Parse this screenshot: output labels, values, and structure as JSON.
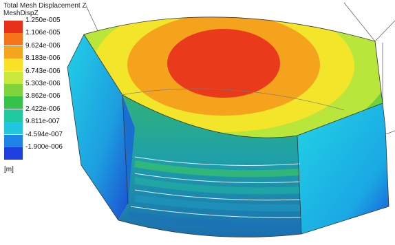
{
  "legend": {
    "title": "Total Mesh Displacement Z",
    "subtitle": "MeshDispZ",
    "unit": "[m]",
    "entries": [
      {
        "label": "1.250e-005",
        "color": "#e8301a"
      },
      {
        "label": "1.106e-005",
        "color": "#f5741a"
      },
      {
        "label": "9.624e-006",
        "color": "#f5a51e"
      },
      {
        "label": "8.183e-006",
        "color": "#fae128"
      },
      {
        "label": "6.743e-006",
        "color": "#c9e83a"
      },
      {
        "label": "5.303e-006",
        "color": "#7fd43c"
      },
      {
        "label": "3.862e-006",
        "color": "#34c24a"
      },
      {
        "label": "2.422e-006",
        "color": "#21c9a0"
      },
      {
        "label": "9.811e-007",
        "color": "#22c6e0"
      },
      {
        "label": "-4.594e-007",
        "color": "#1e84e8"
      },
      {
        "label": "-1.900e-006",
        "color": "#1d3fe0"
      }
    ]
  }
}
